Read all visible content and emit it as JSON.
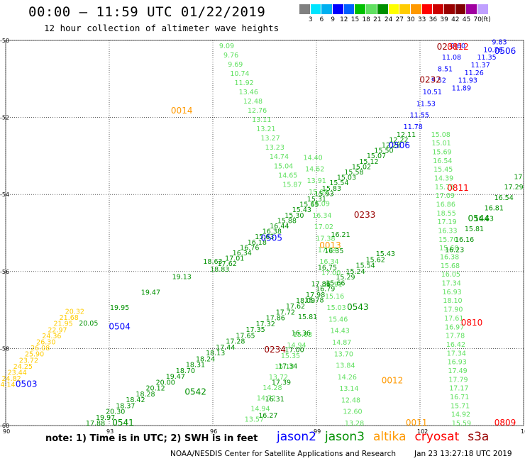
{
  "header": {
    "title": "00:00 – 11:59 UTC 01/22/2019",
    "subtitle": "12 hour collection of altimeter wave heights"
  },
  "colorbar": {
    "colors": [
      "#808080",
      "#00e5ff",
      "#00b0f0",
      "#0000ff",
      "#0060ff",
      "#00c000",
      "#60e060",
      "#009000",
      "#ffff00",
      "#ffcc00",
      "#ff9900",
      "#ff0000",
      "#cc0000",
      "#990000",
      "#800000",
      "#a000a0",
      "#c0a0ff"
    ],
    "labels": [
      "3",
      "6",
      "9",
      "12",
      "15",
      "18",
      "21",
      "24",
      "27",
      "30",
      "33",
      "36",
      "39",
      "42",
      "45",
      "70",
      "(ft)"
    ]
  },
  "axes": {
    "y_ticks": [
      "-50",
      "-52",
      "-54",
      "-56",
      "-58",
      "-60"
    ],
    "x_ticks": [
      "90",
      "93",
      "96",
      "99",
      "102",
      "105"
    ],
    "x_range": [
      90,
      105
    ],
    "y_range": [
      -60,
      -50
    ],
    "grid": true
  },
  "notes": {
    "note_text": "note:  1) Time is in UTC; 2) SWH is in feet"
  },
  "legend": [
    {
      "name": "jason2",
      "color": "#0000ff"
    },
    {
      "name": "jason3",
      "color": "#009000"
    },
    {
      "name": "altika",
      "color": "#ff9900"
    },
    {
      "name": "cryosat",
      "color": "#ff0000"
    },
    {
      "name": "s3a",
      "color": "#990000"
    }
  ],
  "footer": {
    "credit": "NOAA/NESDIS Center for Satellite Applications and Research",
    "date": "Jan 23 13:27:18 UTC 2019"
  },
  "map_data": {
    "pass_labels": [
      {
        "text": "0231",
        "lon": 102.8,
        "lat": -50.0,
        "color": "#990000"
      },
      {
        "text": "0812",
        "lon": 103.1,
        "lat": -50.2,
        "color": "#ff0000"
      },
      {
        "text": "0506",
        "lon": 105.0,
        "lat": -50.35,
        "color": "#0000ff"
      },
      {
        "text": "0232",
        "lon": 102.3,
        "lat": -51.1,
        "color": "#990000"
      },
      {
        "text": "0014",
        "lon": 95.1,
        "lat": -51.9,
        "color": "#ff9900"
      },
      {
        "text": "0506",
        "lon": 101.4,
        "lat": -52.8,
        "color": "#0000ff"
      },
      {
        "text": "0811",
        "lon": 103.1,
        "lat": -53.9,
        "color": "#ff0000"
      },
      {
        "text": "0233",
        "lon": 100.4,
        "lat": -54.6,
        "color": "#990000"
      },
      {
        "text": "0544",
        "lon": 103.7,
        "lat": -54.7,
        "color": "#009000"
      },
      {
        "text": "0505",
        "lon": 97.7,
        "lat": -55.2,
        "color": "#0000ff"
      },
      {
        "text": "0013",
        "lon": 99.4,
        "lat": -55.4,
        "color": "#ff9900"
      },
      {
        "text": "0543",
        "lon": 100.2,
        "lat": -57.0,
        "color": "#009000"
      },
      {
        "text": "0504",
        "lon": 93.3,
        "lat": -57.5,
        "color": "#0000ff"
      },
      {
        "text": "0810",
        "lon": 103.5,
        "lat": -57.4,
        "color": "#ff0000"
      },
      {
        "text": "0234",
        "lon": 97.8,
        "lat": -58.1,
        "color": "#990000"
      },
      {
        "text": "0503",
        "lon": 90.6,
        "lat": -59.0,
        "color": "#0000ff"
      },
      {
        "text": "0012",
        "lon": 101.2,
        "lat": -58.9,
        "color": "#ff9900"
      },
      {
        "text": "0542",
        "lon": 95.5,
        "lat": -59.2,
        "color": "#009000"
      },
      {
        "text": "0541",
        "lon": 93.4,
        "lat": -60.0,
        "color": "#009000"
      },
      {
        "text": "0011",
        "lon": 101.9,
        "lat": -60.0,
        "color": "#ff9900"
      },
      {
        "text": "0809",
        "lon": 104.6,
        "lat": -60.0,
        "color": "#ff0000"
      }
    ],
    "tracks": [
      {
        "name": "pass-0014",
        "color": "#60e060",
        "lon0": 96.4,
        "lat0": -50.2,
        "lon1": 98.3,
        "lat1": -53.8,
        "values": [
          "9.09",
          "9.76",
          "9.69",
          "10.74",
          "11.92",
          "13.46",
          "12.48",
          "12.76",
          "13.11",
          "13.21",
          "13.27",
          "13.23",
          "14.74",
          "15.04",
          "14.65",
          "15.87"
        ]
      },
      {
        "name": "pass-0013",
        "color": "#60e060",
        "lon0": 98.9,
        "lat0": -53.1,
        "lon1": 100.1,
        "lat1": -60.0,
        "values": [
          "14.40",
          "14.62",
          "13.91",
          "15.09",
          "16.09",
          "16.34",
          "17.02",
          "17.38",
          "17.04",
          "16.34",
          "17.00",
          "16.51",
          "15.16",
          "15.03",
          "15.46",
          "14.43",
          "14.87",
          "13.70",
          "13.84",
          "14.26",
          "13.14",
          "12.48",
          "12.60",
          "13.28"
        ]
      },
      {
        "name": "pass-0012",
        "color": "#60e060",
        "lon0": 98.6,
        "lat0": -57.7,
        "lon1": 97.2,
        "lat1": -59.9,
        "values": [
          "15.63",
          "14.94",
          "15.35",
          "15.13",
          "13.72",
          "14.28",
          "14.72",
          "14.94",
          "13.57"
        ]
      },
      {
        "name": "pass-0011",
        "color": "#60e060",
        "lon0": 102.6,
        "lat0": -52.5,
        "lon1": 103.2,
        "lat1": -60.0,
        "values": [
          "15.08",
          "15.01",
          "15.69",
          "16.54",
          "15.45",
          "14.39",
          "15.79",
          "17.09",
          "16.86",
          "18.55",
          "17.19",
          "16.33",
          "15.70",
          "15.60",
          "16.38",
          "15.68",
          "16.05",
          "17.34",
          "16.93",
          "18.10",
          "17.90",
          "17.61",
          "16.97",
          "17.78",
          "16.42",
          "17.34",
          "16.93",
          "17.49",
          "17.79",
          "17.17",
          "16.71",
          "15.71",
          "14.92",
          "15.59"
        ]
      },
      {
        "name": "pass-0506",
        "color": "#0000ff",
        "lon0": 103.1,
        "lat0": -50.2,
        "lon1": 101.8,
        "lat1": -52.3,
        "values": [
          "9.60",
          "11.08",
          "8.51",
          "9.52",
          "10.51",
          "11.53",
          "11.55",
          "11.78"
        ]
      },
      {
        "name": "pass-0506b",
        "color": "#0000ff",
        "lon0": 104.3,
        "lat0": -50.1,
        "lon1": 103.2,
        "lat1": -51.3,
        "values": [
          "9.83",
          "10.76",
          "11.35",
          "11.37",
          "11.26",
          "11.93",
          "11.89"
        ]
      },
      {
        "name": "pass-0505",
        "color": "#009000",
        "lon0": 96.2,
        "lat0": -56.0,
        "lon1": 101.6,
        "lat1": -52.5,
        "values": [
          "18.83",
          "17.62",
          "17.01",
          "16.34",
          "16.76",
          "16.18",
          "15.63",
          "16.38",
          "16.44",
          "15.88",
          "15.30",
          "15.43",
          "15.65",
          "15.31",
          "15.93",
          "15.83",
          "15.54",
          "15.03",
          "15.58",
          "15.02",
          "15.12",
          "15.07",
          "15.50",
          "12.28",
          "12.22",
          "12.11"
        ]
      },
      {
        "name": "pass-0504",
        "color": "#009000",
        "lon0": 92.4,
        "lat0": -57.4,
        "lon1": 96.0,
        "lat1": -55.8,
        "values": [
          "20.05",
          "19.95",
          "19.47",
          "19.13",
          "18.63"
        ]
      },
      {
        "name": "pass-0504y",
        "color": "#ffcc00",
        "lon0": 90.0,
        "lat0": -59.0,
        "lon1": 92.0,
        "lat1": -57.1,
        "values": [
          "24.14",
          "24.82",
          "23.44",
          "24.25",
          "23.72",
          "25.90",
          "26.08",
          "26.30",
          "24.36",
          "22.97",
          "21.95",
          "21.68",
          "20.32"
        ]
      },
      {
        "name": "pass-0542",
        "color": "#009000",
        "lon0": 92.6,
        "lat0": -60.0,
        "lon1": 101.0,
        "lat1": -55.6,
        "values": [
          "17.88",
          "19.97",
          "20.30",
          "18.37",
          "18.42",
          "18.28",
          "20.12",
          "20.00",
          "19.47",
          "18.70",
          "18.31",
          "18.24",
          "18.13",
          "17.44",
          "17.28",
          "17.65",
          "17.35",
          "17.32",
          "17.86",
          "17.72",
          "17.62",
          "18.09",
          "17.98",
          "16.79",
          "15.66",
          "15.29",
          "15.24",
          "15.54",
          "15.62",
          "15.43"
        ]
      },
      {
        "name": "pass-0544",
        "color": "#009000",
        "lon0": 103.0,
        "lat0": -55.5,
        "lon1": 105.0,
        "lat1": -53.6,
        "values": [
          "16.23",
          "16.16",
          "15.81",
          "16.63",
          "16.81",
          "16.54",
          "17.29",
          "17.10"
        ]
      },
      {
        "name": "pass-0543",
        "color": "#009000",
        "lon0": 97.6,
        "lat0": -59.8,
        "lon1": 99.7,
        "lat1": -55.1,
        "values": [
          "16.27",
          "16.31",
          "17.39",
          "17.34",
          "17.00",
          "16.36",
          "15.81",
          "15.78",
          "17.86",
          "16.75",
          "16.35",
          "16.21"
        ]
      }
    ]
  }
}
